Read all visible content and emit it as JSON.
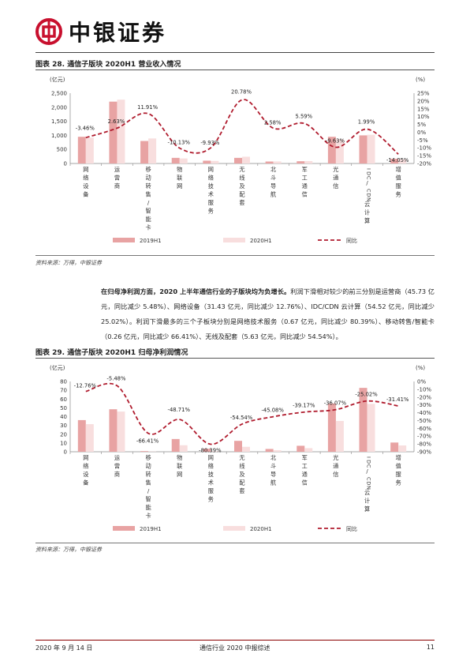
{
  "brand": {
    "name": "中银证券"
  },
  "figure28": {
    "title": "图表 28. 通信子版块 2020H1 营业收入情况",
    "source": "资料来源：万得，中银证券"
  },
  "figure29": {
    "title": "图表 29. 通信子版块 2020H1 归母净利润情况",
    "source": "资料来源：万得，中银证券"
  },
  "paragraph": {
    "lead": "在归母净利润方面，2020 上半年通信行业的子版块均为负增长。",
    "body": "利润下滑相对较少的前三分别是运营商（45.73 亿元，同比减少 5.48%）、网络设备（31.43 亿元，同比减少 12.76%）、IDC/CDN 云计算（54.52 亿元，同比减少 25.02%）。利润下滑最多的三个子板块分别是网络技术服务（0.67 亿元，同比减少 80.39%）、移动转售/智能卡（0.26 亿元，同比减少 66.41%）、无线及配套（5.63 亿元，同比减少 54.54%）。"
  },
  "footer": {
    "date": "2020 年 9 月 14 日",
    "report": "通信行业 2020 中报综述",
    "page": "11"
  },
  "colors": {
    "bar2019": "#e8a3a3",
    "bar2020": "#f8dede",
    "line": "#b01c2e",
    "brand_red": "#c8102e"
  },
  "chart_data": [
    {
      "type": "bar",
      "unit_left": "(亿元)",
      "unit_right": "(%)",
      "categories": [
        "网络设备",
        "运营商",
        "移动转售/智能卡",
        "物联网",
        "网络技术服务",
        "无线及配套",
        "北斗导航",
        "军工通信",
        "光通信",
        "IDC/CDN云计算",
        "增值服务"
      ],
      "series": [
        {
          "name": "2019H1",
          "axis": "left",
          "values": [
            950,
            2200,
            800,
            200,
            100,
            200,
            70,
            80,
            950,
            1000,
            170
          ]
        },
        {
          "name": "2020H1",
          "axis": "left",
          "values": [
            920,
            2270,
            890,
            180,
            90,
            240,
            72,
            85,
            860,
            1020,
            150
          ]
        },
        {
          "name": "同比",
          "axis": "right",
          "style": "dashed-line",
          "values": [
            -3.46,
            2.63,
            11.91,
            -10.13,
            -9.93,
            20.78,
            2.58,
            5.59,
            -9.63,
            1.99,
            -14.05
          ]
        }
      ],
      "data_labels": [
        "-3.46%",
        "2.63%",
        "11.91%",
        "-10.13%",
        "-9.93%",
        "20.78%",
        "2.58%",
        "5.59%",
        "-9.63%",
        "1.99%",
        "-14.05%"
      ],
      "yticks_left": [
        "0",
        "500",
        "1,000",
        "1,500",
        "2,000",
        "2,500"
      ],
      "ylim_left": [
        0,
        2500
      ],
      "yticks_right": [
        "-20%",
        "-15%",
        "-10%",
        "-5%",
        "0%",
        "5%",
        "10%",
        "15%",
        "20%",
        "25%"
      ],
      "ylim_right": [
        -20,
        25
      ],
      "legend": [
        "2019H1",
        "2020H1",
        "同比"
      ],
      "legend_position": "bottom"
    },
    {
      "type": "bar",
      "unit_left": "(亿元)",
      "unit_right": "(%)",
      "categories": [
        "网络设备",
        "运营商",
        "移动转售/智能卡",
        "物联网",
        "网络技术服务",
        "无线及配套",
        "北斗导航",
        "军工通信",
        "光通信",
        "IDC/CDN云计算",
        "增值服务"
      ],
      "series": [
        {
          "name": "2019H1",
          "axis": "left",
          "values": [
            36.02,
            48.38,
            0.77,
            14.5,
            3.42,
            12.39,
            3.2,
            6.8,
            55,
            72.7,
            10.5
          ]
        },
        {
          "name": "2020H1",
          "axis": "left",
          "values": [
            31.43,
            45.73,
            0.26,
            7.44,
            0.67,
            5.63,
            1.76,
            4.14,
            35.1,
            54.52,
            7.2
          ]
        },
        {
          "name": "同比",
          "axis": "right",
          "style": "dashed-line",
          "values": [
            -12.76,
            -5.48,
            -66.41,
            -48.71,
            -80.39,
            -54.54,
            -45.08,
            -39.17,
            -36.07,
            -25.02,
            -31.41
          ]
        }
      ],
      "data_labels": [
        "-12.76%",
        "-5.48%",
        "-66.41%",
        "-48.71%",
        "-80.39%",
        "-54.54%",
        "-45.08%",
        "-39.17%",
        "-36.07%",
        "-25.02%",
        "-31.41%"
      ],
      "yticks_left": [
        "0",
        "10",
        "20",
        "30",
        "40",
        "50",
        "60",
        "70",
        "80"
      ],
      "ylim_left": [
        0,
        80
      ],
      "yticks_right": [
        "-90%",
        "-80%",
        "-70%",
        "-60%",
        "-50%",
        "-40%",
        "-30%",
        "-20%",
        "-10%",
        "0%"
      ],
      "ylim_right": [
        -90,
        0
      ],
      "legend": [
        "2019H1",
        "2020H1",
        "同比"
      ],
      "legend_position": "bottom"
    }
  ]
}
